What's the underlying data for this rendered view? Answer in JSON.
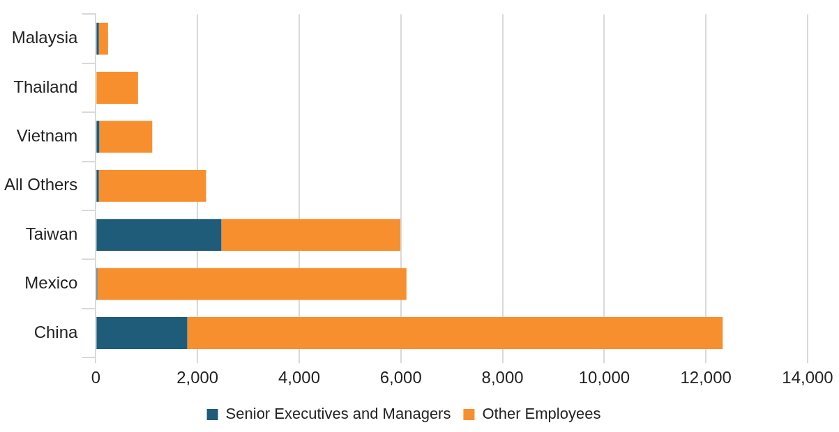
{
  "chart_data": {
    "type": "bar",
    "orientation": "horizontal",
    "stacked": true,
    "categories": [
      "Malaysia",
      "Thailand",
      "Vietnam",
      "All Others",
      "Taiwan",
      "Mexico",
      "China"
    ],
    "series": [
      {
        "name": "Senior Executives and Managers",
        "color": "#1f5c7a",
        "values": [
          60,
          0,
          70,
          60,
          2470,
          30,
          1800
        ]
      },
      {
        "name": "Other Employees",
        "color": "#f78f2e",
        "values": [
          180,
          830,
          1040,
          2110,
          3520,
          6080,
          10530
        ]
      }
    ],
    "xlim": [
      0,
      14000
    ],
    "xticks": [
      0,
      {
        "value": 2000,
        "label": "2,000"
      },
      {
        "value": 4000,
        "label": "4,000"
      },
      {
        "value": 6000,
        "label": "6,000"
      },
      {
        "value": 8000,
        "label": "8,000"
      },
      {
        "value": 10000,
        "label": "10,000"
      },
      {
        "value": 12000,
        "label": "12,000"
      },
      {
        "value": 14000,
        "label": "14,000"
      }
    ],
    "grid": "x",
    "legend": "bottom"
  }
}
